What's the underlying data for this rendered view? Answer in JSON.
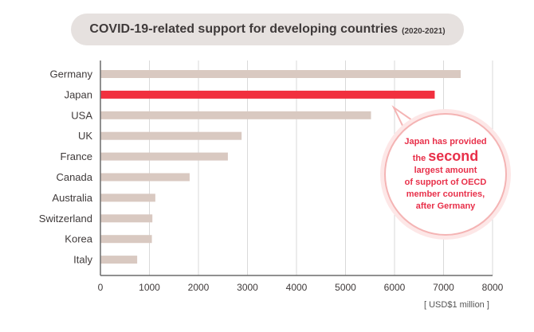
{
  "title": "COVID-19-related support for developing countries",
  "subtitle": "(2020-2021)",
  "unit_label": "[ USD$1 million ]",
  "colors": {
    "bar": "#d9c9c1",
    "highlight": "#f1303f",
    "axis": "#6b6b6b",
    "grid": "#d9d9d9",
    "text": "#3f3a3a",
    "callout": "#e8304a"
  },
  "callout": {
    "line1": "Japan has provided",
    "pre": "the",
    "big": "second",
    "line3": "largest amount",
    "line4": "of support of OECD",
    "line5": "member countries,",
    "line6": "after Germany"
  },
  "chart_data": {
    "type": "bar",
    "orientation": "horizontal",
    "categories": [
      "Germany",
      "Japan",
      "USA",
      "UK",
      "France",
      "Canada",
      "Australia",
      "Switzerland",
      "Korea",
      "Italy"
    ],
    "values": [
      7350,
      6820,
      5520,
      2880,
      2600,
      1820,
      1120,
      1060,
      1050,
      750
    ],
    "highlight": "Japan",
    "xlim": [
      0,
      8000
    ],
    "xticks": [
      0,
      1000,
      2000,
      3000,
      4000,
      5000,
      6000,
      7000,
      8000
    ],
    "grid": "vertical"
  }
}
